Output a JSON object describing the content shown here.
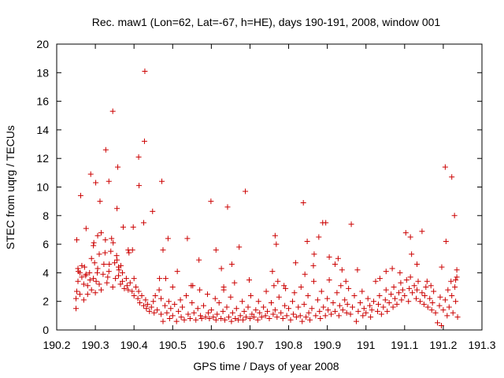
{
  "chart_data": {
    "type": "scatter",
    "title": "Rec. maw1 (Lon=62, Lat=-67, h=HE), days 190-191, 2008, window 001",
    "xlabel": "GPS time / Days of year 2008",
    "ylabel": "STEC from uqrg / TECUs",
    "xlim": [
      190.2,
      191.3
    ],
    "ylim": [
      0,
      20
    ],
    "xticks": [
      190.2,
      190.3,
      190.4,
      190.5,
      190.6,
      190.7,
      190.8,
      190.9,
      191.0,
      191.1,
      191.2,
      191.3
    ],
    "xtick_labels": [
      "190.2",
      "190.3",
      "190.4",
      "190.5",
      "190.6",
      "190.7",
      "190.8",
      "190.9",
      "191",
      "191.1",
      "191.2",
      "191.3"
    ],
    "yticks": [
      0,
      2,
      4,
      6,
      8,
      10,
      12,
      14,
      16,
      18,
      20
    ],
    "ytick_labels": [
      "0",
      "2",
      "4",
      "6",
      "8",
      "10",
      "12",
      "14",
      "16",
      "18",
      "20"
    ],
    "marker": "+",
    "grid": false,
    "legend": "none",
    "color": "#cc0000",
    "points": [
      [
        190.252,
        6.3
      ],
      [
        190.262,
        9.4
      ],
      [
        190.276,
        7.1
      ],
      [
        190.288,
        10.9
      ],
      [
        190.295,
        5.9
      ],
      [
        190.301,
        10.3
      ],
      [
        190.312,
        9.0
      ],
      [
        190.315,
        6.8
      ],
      [
        190.327,
        12.6
      ],
      [
        190.335,
        10.4
      ],
      [
        190.345,
        15.3
      ],
      [
        190.358,
        11.4
      ],
      [
        190.356,
        8.5
      ],
      [
        190.372,
        7.2
      ],
      [
        190.385,
        5.6
      ],
      [
        190.387,
        5.4
      ],
      [
        190.398,
        7.2
      ],
      [
        190.412,
        12.1
      ],
      [
        190.413,
        10.1
      ],
      [
        190.425,
        7.5
      ],
      [
        190.427,
        13.2
      ],
      [
        190.428,
        18.1
      ],
      [
        190.448,
        8.3
      ],
      [
        190.472,
        10.4
      ],
      [
        190.475,
        5.6
      ],
      [
        190.488,
        6.4
      ],
      [
        190.538,
        6.4
      ],
      [
        190.568,
        4.9
      ],
      [
        190.599,
        9.0
      ],
      [
        190.612,
        5.6
      ],
      [
        190.642,
        8.6
      ],
      [
        190.653,
        4.6
      ],
      [
        190.672,
        5.8
      ],
      [
        190.688,
        9.7
      ],
      [
        190.758,
        4.1
      ],
      [
        190.765,
        6.6
      ],
      [
        190.768,
        6.0
      ],
      [
        190.788,
        3.1
      ],
      [
        190.818,
        4.7
      ],
      [
        190.838,
        8.9
      ],
      [
        190.848,
        6.2
      ],
      [
        190.866,
        5.3
      ],
      [
        190.878,
        6.5
      ],
      [
        190.888,
        7.5
      ],
      [
        190.896,
        7.5
      ],
      [
        190.905,
        5.1
      ],
      [
        190.92,
        4.6
      ],
      [
        190.962,
        7.4
      ],
      [
        191.068,
        4.3
      ],
      [
        191.103,
        6.8
      ],
      [
        191.115,
        6.5
      ],
      [
        191.118,
        5.3
      ],
      [
        191.132,
        4.6
      ],
      [
        191.145,
        6.9
      ],
      [
        191.158,
        3.4
      ],
      [
        191.205,
        11.4
      ],
      [
        191.207,
        6.2
      ],
      [
        191.222,
        10.7
      ],
      [
        191.229,
        8.0
      ],
      [
        191.235,
        4.2
      ],
      [
        190.25,
        1.5
      ],
      [
        190.25,
        2.2
      ],
      [
        190.252,
        2.7
      ],
      [
        190.255,
        3.4
      ],
      [
        190.255,
        4.3
      ],
      [
        190.26,
        4.0
      ],
      [
        190.26,
        2.5
      ],
      [
        190.265,
        3.7
      ],
      [
        190.265,
        4.5
      ],
      [
        190.27,
        2.1
      ],
      [
        190.27,
        3.2
      ],
      [
        190.272,
        4.4
      ],
      [
        190.275,
        3.8
      ],
      [
        190.28,
        2.5
      ],
      [
        190.28,
        3.1
      ],
      [
        190.285,
        4.0
      ],
      [
        190.29,
        2.8
      ],
      [
        190.29,
        5.0
      ],
      [
        190.295,
        3.6
      ],
      [
        190.298,
        4.7
      ],
      [
        190.3,
        2.6
      ],
      [
        190.302,
        3.4
      ],
      [
        190.305,
        4.0
      ],
      [
        190.31,
        5.3
      ],
      [
        190.31,
        3.2
      ],
      [
        190.315,
        2.8
      ],
      [
        190.32,
        3.9
      ],
      [
        190.322,
        4.6
      ],
      [
        190.325,
        5.4
      ],
      [
        190.33,
        3.3
      ],
      [
        190.332,
        3.7
      ],
      [
        190.335,
        4.1
      ],
      [
        190.34,
        5.5
      ],
      [
        190.342,
        6.4
      ],
      [
        190.345,
        3.0
      ],
      [
        190.35,
        4.7
      ],
      [
        190.352,
        3.6
      ],
      [
        190.355,
        5.2
      ],
      [
        190.36,
        3.8
      ],
      [
        190.36,
        4.4
      ],
      [
        190.365,
        3.2
      ],
      [
        190.37,
        4.0
      ],
      [
        190.37,
        3.4
      ],
      [
        190.375,
        2.9
      ],
      [
        190.38,
        3.6
      ],
      [
        190.382,
        3.1
      ],
      [
        190.385,
        2.8
      ],
      [
        190.39,
        3.3
      ],
      [
        190.395,
        2.7
      ],
      [
        190.4,
        3.6
      ],
      [
        190.4,
        2.4
      ],
      [
        190.405,
        3.0
      ],
      [
        190.41,
        2.2
      ],
      [
        190.412,
        2.7
      ],
      [
        190.415,
        1.9
      ],
      [
        190.42,
        2.4
      ],
      [
        190.425,
        1.7
      ],
      [
        190.43,
        2.1
      ],
      [
        190.432,
        1.5
      ],
      [
        190.435,
        1.8
      ],
      [
        190.44,
        1.3
      ],
      [
        190.445,
        1.6
      ],
      [
        190.45,
        2.0
      ],
      [
        190.452,
        1.2
      ],
      [
        190.455,
        2.4
      ],
      [
        190.46,
        1.4
      ],
      [
        190.465,
        2.8
      ],
      [
        190.47,
        1.1
      ],
      [
        190.47,
        2.2
      ],
      [
        190.475,
        0.6
      ],
      [
        190.48,
        1.7
      ],
      [
        190.482,
        3.6
      ],
      [
        190.485,
        1.2
      ],
      [
        190.49,
        2.0
      ],
      [
        190.492,
        0.8
      ],
      [
        190.495,
        1.5
      ],
      [
        190.5,
        3.0
      ],
      [
        190.5,
        1.0
      ],
      [
        190.505,
        1.8
      ],
      [
        190.51,
        0.6
      ],
      [
        190.515,
        1.3
      ],
      [
        190.52,
        2.1
      ],
      [
        190.522,
        0.9
      ],
      [
        190.525,
        1.6
      ],
      [
        190.53,
        0.7
      ],
      [
        190.535,
        2.4
      ],
      [
        190.54,
        1.1
      ],
      [
        190.545,
        0.8
      ],
      [
        190.55,
        1.9
      ],
      [
        190.552,
        3.1
      ],
      [
        190.555,
        1.2
      ],
      [
        190.56,
        0.7
      ],
      [
        190.565,
        1.5
      ],
      [
        190.57,
        2.8
      ],
      [
        190.572,
        1.0
      ],
      [
        190.575,
        0.8
      ],
      [
        190.58,
        1.7
      ],
      [
        190.585,
        0.9
      ],
      [
        190.59,
        2.5
      ],
      [
        190.592,
        1.2
      ],
      [
        190.595,
        0.8
      ],
      [
        190.6,
        1.4
      ],
      [
        190.605,
        0.9
      ],
      [
        190.61,
        2.2
      ],
      [
        190.612,
        0.7
      ],
      [
        190.615,
        1.1
      ],
      [
        190.62,
        1.9
      ],
      [
        190.625,
        0.8
      ],
      [
        190.63,
        1.3
      ],
      [
        190.632,
        3.0
      ],
      [
        190.635,
        0.7
      ],
      [
        190.64,
        1.6
      ],
      [
        190.645,
        0.9
      ],
      [
        190.65,
        2.3
      ],
      [
        190.652,
        0.6
      ],
      [
        190.655,
        1.2
      ],
      [
        190.66,
        3.3
      ],
      [
        190.662,
        0.8
      ],
      [
        190.665,
        1.5
      ],
      [
        190.67,
        0.7
      ],
      [
        190.675,
        1.0
      ],
      [
        190.68,
        2.0
      ],
      [
        190.682,
        0.7
      ],
      [
        190.685,
        1.3
      ],
      [
        190.69,
        0.9
      ],
      [
        190.695,
        1.6
      ],
      [
        190.7,
        0.8
      ],
      [
        190.702,
        2.4
      ],
      [
        190.705,
        1.1
      ],
      [
        190.71,
        0.9
      ],
      [
        190.715,
        1.4
      ],
      [
        190.72,
        0.7
      ],
      [
        190.722,
        2.0
      ],
      [
        190.725,
        1.2
      ],
      [
        190.73,
        0.9
      ],
      [
        190.735,
        1.6
      ],
      [
        190.74,
        1.0
      ],
      [
        190.742,
        2.7
      ],
      [
        190.745,
        1.3
      ],
      [
        190.75,
        0.8
      ],
      [
        190.755,
        1.9
      ],
      [
        190.76,
        1.1
      ],
      [
        190.762,
        3.1
      ],
      [
        190.765,
        1.4
      ],
      [
        190.77,
        0.9
      ],
      [
        190.775,
        2.3
      ],
      [
        190.78,
        1.2
      ],
      [
        190.785,
        0.8
      ],
      [
        190.79,
        1.7
      ],
      [
        190.792,
        2.9
      ],
      [
        190.795,
        1.0
      ],
      [
        190.8,
        1.5
      ],
      [
        190.805,
        0.7
      ],
      [
        190.81,
        2.0
      ],
      [
        190.812,
        1.1
      ],
      [
        190.815,
        2.6
      ],
      [
        190.82,
        0.9
      ],
      [
        190.825,
        1.6
      ],
      [
        190.83,
        1.0
      ],
      [
        190.832,
        3.0
      ],
      [
        190.835,
        0.6
      ],
      [
        190.84,
        1.8
      ],
      [
        190.845,
        0.9
      ],
      [
        190.85,
        2.4
      ],
      [
        190.852,
        1.2
      ],
      [
        190.855,
        0.7
      ],
      [
        190.86,
        1.5
      ],
      [
        190.865,
        3.4
      ],
      [
        190.87,
        1.0
      ],
      [
        190.875,
        2.1
      ],
      [
        190.88,
        1.3
      ],
      [
        190.882,
        0.8
      ],
      [
        190.885,
        2.7
      ],
      [
        190.89,
        1.6
      ],
      [
        190.895,
        1.0
      ],
      [
        190.9,
        2.2
      ],
      [
        190.902,
        1.4
      ],
      [
        190.905,
        3.5
      ],
      [
        190.91,
        1.1
      ],
      [
        190.915,
        1.9
      ],
      [
        190.92,
        1.3
      ],
      [
        190.925,
        2.6
      ],
      [
        190.93,
        1.0
      ],
      [
        190.932,
        1.7
      ],
      [
        190.935,
        3.1
      ],
      [
        190.94,
        1.4
      ],
      [
        190.945,
        2.1
      ],
      [
        190.95,
        1.2
      ],
      [
        190.952,
        1.8
      ],
      [
        190.955,
        2.9
      ],
      [
        190.96,
        1.1
      ],
      [
        190.965,
        1.6
      ],
      [
        190.97,
        2.4
      ],
      [
        190.975,
        0.6
      ],
      [
        190.98,
        1.3
      ],
      [
        190.985,
        1.9
      ],
      [
        190.99,
        2.7
      ],
      [
        190.992,
        1.0
      ],
      [
        190.995,
        1.5
      ],
      [
        191.0,
        1.2
      ],
      [
        191.005,
        2.2
      ],
      [
        191.01,
        1.7
      ],
      [
        191.012,
        0.9
      ],
      [
        191.015,
        1.4
      ],
      [
        191.02,
        2.0
      ],
      [
        191.025,
        3.4
      ],
      [
        191.03,
        1.3
      ],
      [
        191.032,
        1.8
      ],
      [
        191.035,
        2.4
      ],
      [
        191.04,
        1.1
      ],
      [
        191.045,
        1.6
      ],
      [
        191.05,
        2.1
      ],
      [
        191.052,
        2.8
      ],
      [
        191.055,
        1.3
      ],
      [
        191.06,
        1.9
      ],
      [
        191.065,
        2.5
      ],
      [
        191.07,
        1.6
      ],
      [
        191.072,
        3.0
      ],
      [
        191.075,
        2.2
      ],
      [
        191.08,
        1.8
      ],
      [
        191.085,
        2.6
      ],
      [
        191.09,
        3.3
      ],
      [
        191.092,
        2.1
      ],
      [
        191.095,
        2.8
      ],
      [
        191.1,
        2.4
      ],
      [
        191.105,
        3.5
      ],
      [
        191.11,
        2.0
      ],
      [
        191.112,
        2.9
      ],
      [
        191.115,
        3.7
      ],
      [
        191.12,
        2.6
      ],
      [
        191.125,
        3.1
      ],
      [
        191.13,
        2.2
      ],
      [
        191.132,
        2.8
      ],
      [
        191.135,
        3.4
      ],
      [
        191.14,
        2.0
      ],
      [
        191.145,
        2.6
      ],
      [
        191.15,
        1.8
      ],
      [
        191.152,
        2.4
      ],
      [
        191.155,
        3.0
      ],
      [
        191.16,
        1.6
      ],
      [
        191.165,
        2.2
      ],
      [
        191.17,
        1.4
      ],
      [
        191.172,
        1.9
      ],
      [
        191.175,
        2.7
      ],
      [
        191.18,
        1.2
      ],
      [
        191.185,
        0.5
      ],
      [
        191.19,
        1.7
      ],
      [
        191.192,
        2.3
      ],
      [
        191.195,
        0.3
      ],
      [
        191.2,
        1.4
      ],
      [
        191.205,
        2.1
      ],
      [
        191.21,
        1.0
      ],
      [
        191.212,
        2.8
      ],
      [
        191.215,
        1.6
      ],
      [
        191.22,
        3.4
      ],
      [
        191.222,
        2.4
      ],
      [
        191.225,
        1.2
      ],
      [
        191.23,
        3.0
      ],
      [
        191.232,
        2.0
      ],
      [
        191.235,
        3.7
      ],
      [
        191.237,
        0.9
      ],
      [
        190.256,
        4.1
      ],
      [
        190.276,
        3.9
      ],
      [
        190.306,
        4.3
      ],
      [
        190.336,
        4.6
      ],
      [
        190.366,
        4.5
      ],
      [
        190.356,
        4.9
      ],
      [
        190.396,
        5.6
      ],
      [
        190.326,
        6.3
      ],
      [
        190.296,
        6.1
      ],
      [
        190.306,
        6.6
      ],
      [
        190.346,
        6.1
      ],
      [
        190.361,
        4.2
      ],
      [
        190.286,
        3.5
      ],
      [
        190.466,
        3.6
      ],
      [
        190.512,
        4.1
      ],
      [
        190.548,
        3.1
      ],
      [
        190.626,
        4.3
      ],
      [
        190.632,
        2.8
      ],
      [
        190.698,
        3.5
      ],
      [
        190.772,
        3.4
      ],
      [
        190.842,
        3.9
      ],
      [
        190.864,
        4.5
      ],
      [
        190.928,
        5.0
      ],
      [
        190.938,
        4.2
      ],
      [
        190.948,
        3.4
      ],
      [
        190.978,
        4.2
      ],
      [
        191.036,
        3.6
      ],
      [
        191.052,
        4.1
      ],
      [
        191.088,
        4.0
      ],
      [
        191.168,
        3.1
      ],
      [
        191.196,
        4.4
      ],
      [
        191.232,
        3.5
      ]
    ]
  }
}
